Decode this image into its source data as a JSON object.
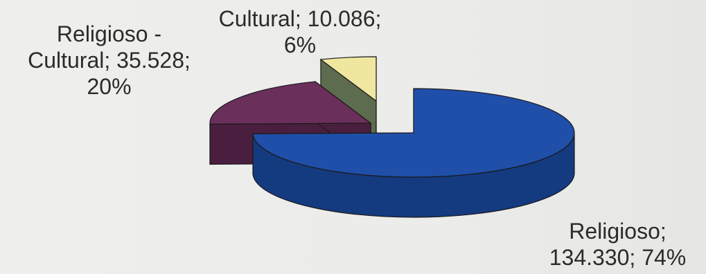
{
  "chart_data": {
    "type": "pie",
    "three_d": true,
    "title": "",
    "categories": [
      "Religioso",
      "Religioso - Cultural",
      "Cultural"
    ],
    "values": [
      134330,
      35528,
      10086
    ],
    "value_labels": [
      "134.330",
      "35.528",
      "10.086"
    ],
    "percent_labels": [
      "74%",
      "20%",
      "6%"
    ],
    "colors": [
      "#1f4fa8",
      "#6a2f5a",
      "#efe6a0"
    ],
    "side_colors": [
      "#143a80",
      "#4a1e3e",
      "#5d6b4e"
    ],
    "legend": "none",
    "labels": [
      {
        "line1": "Cultural; 10.086;",
        "line2": "6%"
      },
      {
        "line1": "Religioso -",
        "line2": "Cultural; 35.528;",
        "line3": "20%"
      },
      {
        "line1": "Religioso;",
        "line2": "134.330; 74%"
      }
    ]
  }
}
